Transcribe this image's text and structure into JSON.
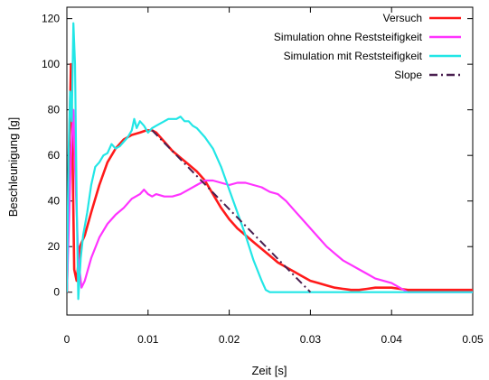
{
  "chart_data": {
    "type": "line",
    "xlabel": "Zeit [s]",
    "ylabel": "Beschleunigung [g]",
    "xlim": [
      0,
      0.05
    ],
    "ylim": [
      -10,
      125
    ],
    "xticks": [
      {
        "value": 0,
        "label": "0"
      },
      {
        "value": 0.01,
        "label": "0.01"
      },
      {
        "value": 0.02,
        "label": "0.02"
      },
      {
        "value": 0.03,
        "label": "0.03"
      },
      {
        "value": 0.04,
        "label": "0.04"
      },
      {
        "value": 0.05,
        "label": "0.05"
      }
    ],
    "yticks": [
      {
        "value": 0,
        "label": "0"
      },
      {
        "value": 20,
        "label": "20"
      },
      {
        "value": 40,
        "label": "40"
      },
      {
        "value": 60,
        "label": "60"
      },
      {
        "value": 80,
        "label": "80"
      },
      {
        "value": 100,
        "label": "100"
      },
      {
        "value": 120,
        "label": "120"
      }
    ],
    "legend_position": "top-right",
    "grid": false,
    "series": [
      {
        "name": "Versuch",
        "color": "#ff1a1a",
        "style": "solid",
        "points": [
          [
            0,
            0
          ],
          [
            0.0003,
            65
          ],
          [
            0.0005,
            100
          ],
          [
            0.0007,
            60
          ],
          [
            0.0009,
            10
          ],
          [
            0.0012,
            5
          ],
          [
            0.0016,
            20
          ],
          [
            0.0022,
            25
          ],
          [
            0.003,
            35
          ],
          [
            0.004,
            47
          ],
          [
            0.005,
            57
          ],
          [
            0.006,
            63
          ],
          [
            0.007,
            67
          ],
          [
            0.008,
            69
          ],
          [
            0.009,
            70
          ],
          [
            0.0098,
            71
          ],
          [
            0.0105,
            71
          ],
          [
            0.011,
            70
          ],
          [
            0.012,
            66
          ],
          [
            0.013,
            62
          ],
          [
            0.014,
            59
          ],
          [
            0.015,
            56
          ],
          [
            0.016,
            53
          ],
          [
            0.017,
            49
          ],
          [
            0.018,
            43
          ],
          [
            0.019,
            37
          ],
          [
            0.02,
            32
          ],
          [
            0.021,
            28
          ],
          [
            0.022,
            25
          ],
          [
            0.023,
            22
          ],
          [
            0.024,
            19
          ],
          [
            0.025,
            16
          ],
          [
            0.026,
            13
          ],
          [
            0.027,
            11
          ],
          [
            0.028,
            9
          ],
          [
            0.029,
            7
          ],
          [
            0.03,
            5
          ],
          [
            0.031,
            4
          ],
          [
            0.032,
            3
          ],
          [
            0.033,
            2
          ],
          [
            0.034,
            1.5
          ],
          [
            0.035,
            1
          ],
          [
            0.036,
            1
          ],
          [
            0.037,
            1.5
          ],
          [
            0.038,
            2
          ],
          [
            0.039,
            2
          ],
          [
            0.04,
            2
          ],
          [
            0.041,
            1.5
          ],
          [
            0.042,
            1
          ],
          [
            0.044,
            1
          ],
          [
            0.046,
            1
          ],
          [
            0.048,
            1
          ],
          [
            0.05,
            1
          ]
        ]
      },
      {
        "name": "Simulation ohne Reststeifigkeit",
        "color": "#ff33ff",
        "style": "solid",
        "points": [
          [
            0,
            0
          ],
          [
            0.0005,
            60
          ],
          [
            0.0008,
            80
          ],
          [
            0.001,
            55
          ],
          [
            0.0014,
            15
          ],
          [
            0.0018,
            2
          ],
          [
            0.0022,
            5
          ],
          [
            0.003,
            15
          ],
          [
            0.004,
            24
          ],
          [
            0.005,
            30
          ],
          [
            0.006,
            34
          ],
          [
            0.007,
            37
          ],
          [
            0.008,
            41
          ],
          [
            0.009,
            43
          ],
          [
            0.0095,
            45
          ],
          [
            0.01,
            43
          ],
          [
            0.0105,
            42
          ],
          [
            0.011,
            43
          ],
          [
            0.012,
            42
          ],
          [
            0.013,
            42
          ],
          [
            0.014,
            43
          ],
          [
            0.015,
            45
          ],
          [
            0.016,
            47
          ],
          [
            0.017,
            49
          ],
          [
            0.018,
            49
          ],
          [
            0.019,
            48
          ],
          [
            0.02,
            47
          ],
          [
            0.021,
            48
          ],
          [
            0.022,
            48
          ],
          [
            0.023,
            47
          ],
          [
            0.024,
            46
          ],
          [
            0.025,
            44
          ],
          [
            0.026,
            43
          ],
          [
            0.027,
            40
          ],
          [
            0.028,
            36
          ],
          [
            0.029,
            32
          ],
          [
            0.03,
            28
          ],
          [
            0.031,
            24
          ],
          [
            0.032,
            20
          ],
          [
            0.033,
            17
          ],
          [
            0.034,
            14
          ],
          [
            0.035,
            12
          ],
          [
            0.036,
            10
          ],
          [
            0.037,
            8
          ],
          [
            0.038,
            6
          ],
          [
            0.039,
            5
          ],
          [
            0.04,
            4
          ],
          [
            0.041,
            2
          ],
          [
            0.042,
            0
          ],
          [
            0.044,
            0
          ],
          [
            0.046,
            0
          ],
          [
            0.048,
            0
          ],
          [
            0.05,
            0
          ]
        ]
      },
      {
        "name": "Simulation mit Reststeifigkeit",
        "color": "#22e6e6",
        "style": "solid",
        "points": [
          [
            0,
            0
          ],
          [
            0.0002,
            60
          ],
          [
            0.0004,
            88
          ],
          [
            0.0006,
            75
          ],
          [
            0.0008,
            118
          ],
          [
            0.001,
            100
          ],
          [
            0.0012,
            40
          ],
          [
            0.0014,
            -3
          ],
          [
            0.0017,
            15
          ],
          [
            0.002,
            25
          ],
          [
            0.0025,
            35
          ],
          [
            0.003,
            47
          ],
          [
            0.0035,
            55
          ],
          [
            0.004,
            57
          ],
          [
            0.0045,
            60
          ],
          [
            0.005,
            61
          ],
          [
            0.0055,
            65
          ],
          [
            0.006,
            63
          ],
          [
            0.0065,
            64
          ],
          [
            0.007,
            66
          ],
          [
            0.0075,
            68
          ],
          [
            0.008,
            71
          ],
          [
            0.0083,
            76
          ],
          [
            0.0086,
            72
          ],
          [
            0.009,
            75
          ],
          [
            0.0095,
            73
          ],
          [
            0.01,
            70
          ],
          [
            0.0105,
            72
          ],
          [
            0.011,
            73
          ],
          [
            0.0115,
            74
          ],
          [
            0.012,
            75
          ],
          [
            0.0125,
            76
          ],
          [
            0.013,
            76
          ],
          [
            0.0135,
            76
          ],
          [
            0.014,
            77
          ],
          [
            0.0145,
            75
          ],
          [
            0.015,
            75
          ],
          [
            0.0155,
            73
          ],
          [
            0.016,
            72
          ],
          [
            0.017,
            68
          ],
          [
            0.018,
            63
          ],
          [
            0.019,
            55
          ],
          [
            0.02,
            45
          ],
          [
            0.021,
            35
          ],
          [
            0.022,
            25
          ],
          [
            0.023,
            14
          ],
          [
            0.024,
            5
          ],
          [
            0.0245,
            1
          ],
          [
            0.025,
            0
          ],
          [
            0.027,
            0
          ],
          [
            0.03,
            0
          ],
          [
            0.035,
            0
          ],
          [
            0.04,
            0
          ],
          [
            0.045,
            0
          ],
          [
            0.05,
            0
          ]
        ]
      },
      {
        "name": "Slope",
        "color": "#4a2050",
        "style": "dashdot",
        "points": [
          [
            0.0105,
            71
          ],
          [
            0.03,
            0
          ]
        ]
      }
    ]
  }
}
